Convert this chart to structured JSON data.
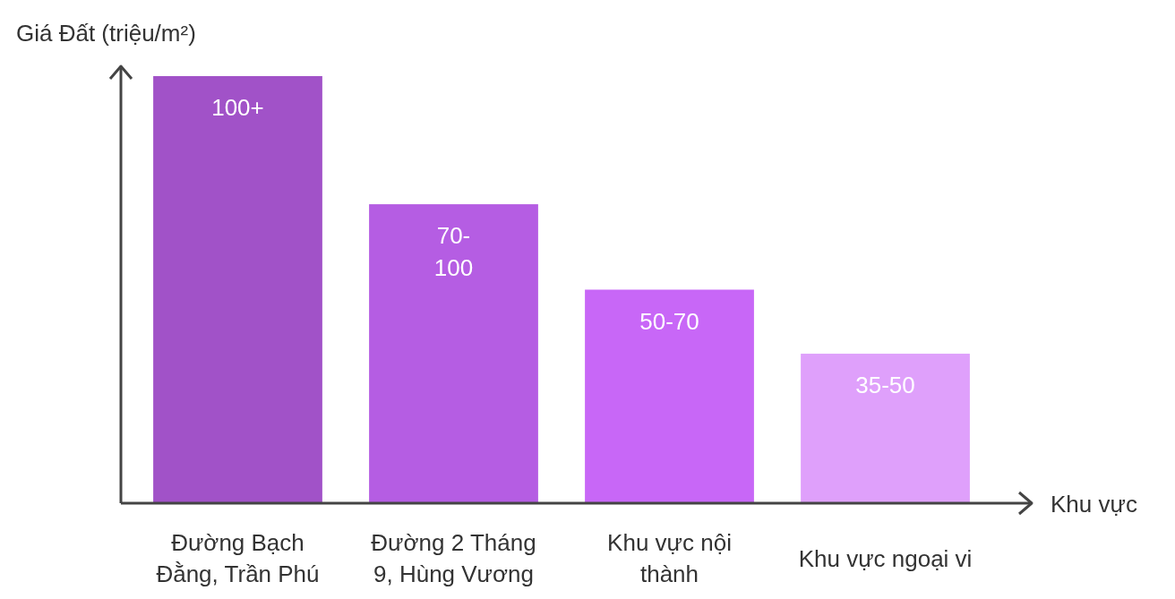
{
  "chart_data": {
    "type": "bar",
    "ylabel": "Giá Đất (triệu/m²)",
    "xlabel": "Khu vực",
    "categories": [
      "Đường Bạch Đằng, Trần Phú",
      "Đường 2 Tháng 9, Hùng Vương",
      "Khu vực nội thành",
      "Khu vực ngoại vi"
    ],
    "values": [
      100,
      70,
      50,
      35
    ],
    "colors": [
      "#a152c8",
      "#b55de3",
      "#c867f7",
      "#dfa0fb"
    ],
    "value_labels": [
      "100+",
      "70-100",
      "50-70",
      "35-50"
    ]
  }
}
